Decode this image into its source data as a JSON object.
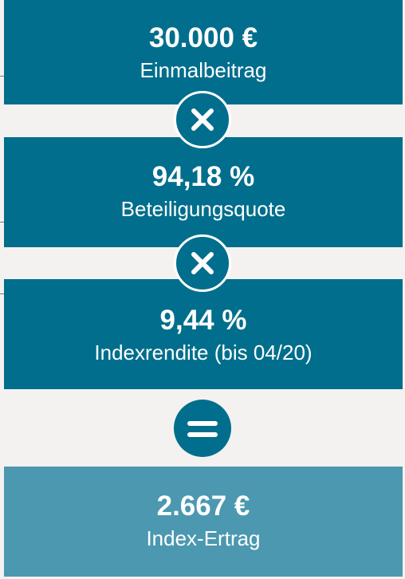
{
  "boxes": [
    {
      "value": "30.000 €",
      "label": "Einmalbeitrag"
    },
    {
      "value": "94,18 %",
      "label": "Beteiligungsquote"
    },
    {
      "value": "9,44 %",
      "label": "Indexrendite (bis 04/20)"
    },
    {
      "value": "2.667 €",
      "label": "Index-Ertrag"
    }
  ]
}
